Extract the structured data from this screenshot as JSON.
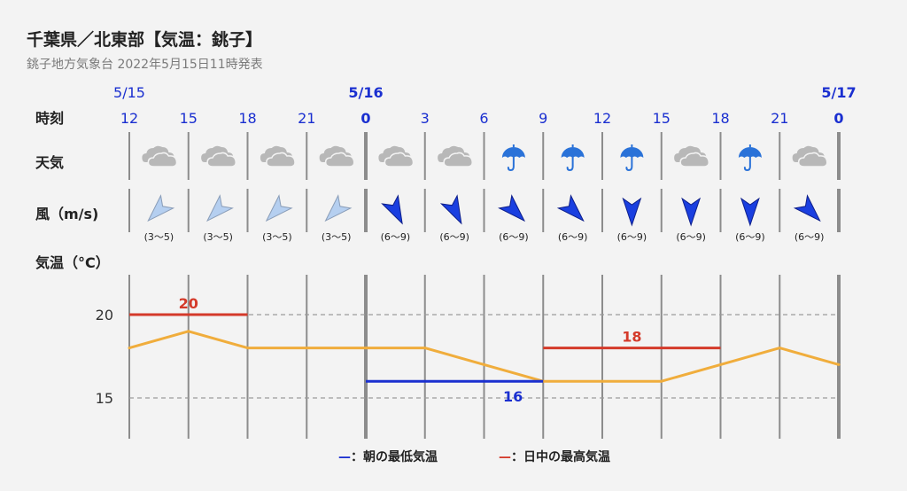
{
  "title": "千葉県／北東部【気温：銚子】",
  "subtitle": "銚子地方気象台 2022年5月15日11時発表",
  "row_labels": {
    "time": "時刻",
    "weather": "天気",
    "wind": "風（m/s)",
    "temp": "気温（°C）"
  },
  "colors": {
    "accent_blue": "#1a2fd0",
    "max_red": "#d43a2a",
    "temp_line": "#f0ad3c",
    "wind_light": "#b5cff0",
    "wind_strong": "#1a3fe0"
  },
  "chart_data": {
    "type": "line",
    "x": [
      "12",
      "15",
      "18",
      "21",
      "0",
      "3",
      "6",
      "9",
      "12",
      "15",
      "18",
      "21",
      "0"
    ],
    "date_labels": [
      {
        "index": 0,
        "label": "5/15",
        "bold": false
      },
      {
        "index": 4,
        "label": "5/16",
        "bold": true
      },
      {
        "index": 12,
        "label": "5/17",
        "bold": true
      }
    ],
    "weather": [
      "cloudy",
      "cloudy",
      "cloudy",
      "cloudy",
      "cloudy",
      "cloudy",
      "rain",
      "rain",
      "rain",
      "cloudy",
      "rain",
      "cloudy"
    ],
    "wind": {
      "directions_deg": [
        225,
        225,
        225,
        225,
        153,
        153,
        135,
        135,
        180,
        180,
        180,
        135
      ],
      "strength": [
        "light",
        "light",
        "light",
        "light",
        "strong",
        "strong",
        "strong",
        "strong",
        "strong",
        "strong",
        "strong",
        "strong"
      ],
      "ranges": [
        "(3〜5)",
        "(3〜5)",
        "(3〜5)",
        "(3〜5)",
        "(6〜9)",
        "(6〜9)",
        "(6〜9)",
        "(6〜9)",
        "(6〜9)",
        "(6〜9)",
        "(6〜9)",
        "(6〜9)"
      ]
    },
    "series": [
      {
        "values": [
          18,
          19,
          18,
          18,
          18,
          18,
          17,
          16,
          16,
          16,
          17,
          18,
          17
        ]
      }
    ],
    "max_temps": [
      {
        "value": 20,
        "from_index": 0,
        "to_index": 2,
        "label": "20"
      },
      {
        "value": 18,
        "from_index": 7,
        "to_index": 10,
        "label": "18"
      }
    ],
    "min_temps": [
      {
        "value": 16,
        "from_index": 4,
        "to_index": 7,
        "label": "16"
      }
    ],
    "yticks": [
      20,
      15
    ],
    "ylim": [
      12.6,
      22.5
    ],
    "grid": true,
    "legend": [
      {
        "mark": "—",
        "text": "：朝の最低気温",
        "color": "#1a2fd0"
      },
      {
        "mark": "—",
        "text": "：日中の最高気温",
        "color": "#d43a2a"
      }
    ],
    "legend_position": "bottom-center"
  }
}
